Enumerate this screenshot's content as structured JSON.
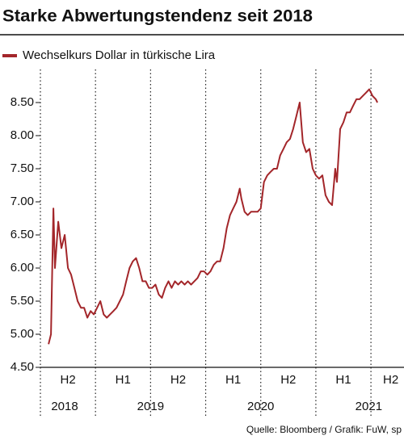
{
  "chart_data": {
    "type": "line",
    "title": "Starke Abwertungstendenz seit 2018",
    "source": "Quelle: Bloomberg / Grafik: FuW, sp",
    "series": [
      {
        "name": "Wechselkurs Dollar in türkische Lira",
        "color": "#a3262a",
        "x": [
          2018.574,
          2018.596,
          2018.618,
          2018.632,
          2018.662,
          2018.691,
          2018.721,
          2018.75,
          2018.779,
          2018.809,
          2018.838,
          2018.868,
          2018.897,
          2018.926,
          2018.956,
          2018.985,
          2019.015,
          2019.044,
          2019.074,
          2019.103,
          2019.132,
          2019.162,
          2019.191,
          2019.221,
          2019.25,
          2019.279,
          2019.309,
          2019.338,
          2019.368,
          2019.397,
          2019.426,
          2019.456,
          2019.485,
          2019.515,
          2019.544,
          2019.574,
          2019.603,
          2019.632,
          2019.662,
          2019.691,
          2019.721,
          2019.75,
          2019.779,
          2019.809,
          2019.838,
          2019.868,
          2019.897,
          2019.926,
          2019.956,
          2019.985,
          2020.015,
          2020.044,
          2020.074,
          2020.103,
          2020.132,
          2020.162,
          2020.191,
          2020.221,
          2020.25,
          2020.279,
          2020.309,
          2020.324,
          2020.353,
          2020.382,
          2020.412,
          2020.441,
          2020.471,
          2020.5,
          2020.529,
          2020.559,
          2020.588,
          2020.618,
          2020.647,
          2020.676,
          2020.706,
          2020.735,
          2020.765,
          2020.794,
          2020.824,
          2020.853,
          2020.882,
          2020.912,
          2020.941,
          2020.971,
          2021.0,
          2021.029,
          2021.059,
          2021.088,
          2021.118,
          2021.147,
          2021.176,
          2021.191,
          2021.221,
          2021.25,
          2021.279,
          2021.309,
          2021.338,
          2021.368,
          2021.397,
          2021.426,
          2021.456,
          2021.485,
          2021.515,
          2021.544,
          2021.559
        ],
        "values": [
          4.85,
          5.0,
          6.9,
          6.0,
          6.7,
          6.3,
          6.5,
          6.0,
          5.9,
          5.7,
          5.5,
          5.4,
          5.4,
          5.25,
          5.35,
          5.3,
          5.4,
          5.5,
          5.3,
          5.25,
          5.3,
          5.35,
          5.4,
          5.5,
          5.6,
          5.8,
          6.0,
          6.1,
          6.15,
          6.0,
          5.8,
          5.8,
          5.7,
          5.7,
          5.75,
          5.6,
          5.55,
          5.7,
          5.8,
          5.7,
          5.8,
          5.75,
          5.8,
          5.75,
          5.8,
          5.75,
          5.8,
          5.85,
          5.95,
          5.95,
          5.9,
          5.95,
          6.05,
          6.1,
          6.1,
          6.3,
          6.6,
          6.8,
          6.9,
          7.0,
          7.2,
          7.05,
          6.85,
          6.8,
          6.85,
          6.85,
          6.85,
          6.9,
          7.3,
          7.4,
          7.45,
          7.5,
          7.5,
          7.7,
          7.8,
          7.9,
          7.95,
          8.1,
          8.3,
          8.5,
          7.9,
          7.75,
          7.8,
          7.5,
          7.4,
          7.35,
          7.4,
          7.1,
          7.0,
          6.95,
          7.5,
          7.3,
          8.1,
          8.2,
          8.35,
          8.35,
          8.45,
          8.55,
          8.55,
          8.6,
          8.65,
          8.7,
          8.6,
          8.55,
          8.5
        ]
      }
    ],
    "xlim": [
      2018.5,
      2021.8
    ],
    "ylim": [
      4.5,
      9.0
    ],
    "yticks": [
      {
        "value": 4.5,
        "label": "4.50"
      },
      {
        "value": 5.0,
        "label": "5.00"
      },
      {
        "value": 5.5,
        "label": "5.50"
      },
      {
        "value": 6.0,
        "label": "6.00"
      },
      {
        "value": 6.5,
        "label": "6.50"
      },
      {
        "value": 7.0,
        "label": "7.00"
      },
      {
        "value": 7.5,
        "label": "7.50"
      },
      {
        "value": 8.0,
        "label": "8.00"
      },
      {
        "value": 8.5,
        "label": "8.50"
      }
    ],
    "xticks": [
      {
        "value": 2018.75,
        "label": "H2"
      },
      {
        "value": 2019.25,
        "label": "H1"
      },
      {
        "value": 2019.75,
        "label": "H2"
      },
      {
        "value": 2020.25,
        "label": "H1"
      },
      {
        "value": 2020.75,
        "label": "H2"
      },
      {
        "value": 2021.25,
        "label": "H1"
      },
      {
        "value": 2021.68,
        "label": "H2"
      }
    ],
    "xgrid": [
      2018.5,
      2019.0,
      2019.5,
      2020.0,
      2020.5,
      2021.0,
      2021.5
    ],
    "year_labels": [
      {
        "value": 2018.72,
        "label": "2018"
      },
      {
        "value": 2019.5,
        "label": "2019"
      },
      {
        "value": 2020.5,
        "label": "2020"
      },
      {
        "value": 2021.48,
        "label": "2021"
      }
    ]
  }
}
